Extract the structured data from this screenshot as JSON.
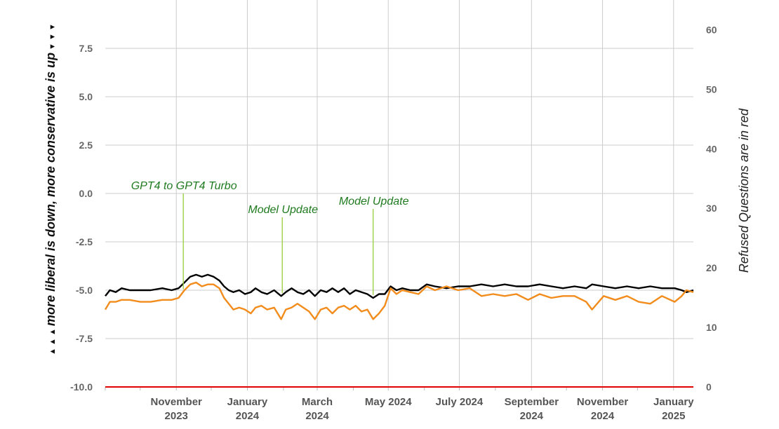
{
  "chart_data": {
    "type": "line",
    "x_axis": {
      "ticks": [
        {
          "line1": "November",
          "line2": "2023",
          "date": "2023-11-01"
        },
        {
          "line1": "January",
          "line2": "2024",
          "date": "2024-01-01"
        },
        {
          "line1": "March",
          "line2": "2024",
          "date": "2024-03-01"
        },
        {
          "line1": "May 2024",
          "line2": "",
          "date": "2024-05-01"
        },
        {
          "line1": "July 2024",
          "line2": "",
          "date": "2024-07-01"
        },
        {
          "line1": "September",
          "line2": "2024",
          "date": "2024-09-01"
        },
        {
          "line1": "November",
          "line2": "2024",
          "date": "2024-11-01"
        },
        {
          "line1": "January",
          "line2": "2025",
          "date": "2025-01-01"
        }
      ],
      "range": [
        "2023-09-01",
        "2025-01-18"
      ],
      "grid": true
    },
    "y_left": {
      "label_prefix": "▲ ▲ ▲ ",
      "label": "more liberal is down, more conservative is up",
      "label_suffix": " ▼ ▼ ▼",
      "range": [
        -10.0,
        10.0
      ],
      "ticks": [
        "7.5",
        "5.0",
        "2.5",
        "0.0",
        "-2.5",
        "-5.0",
        "-7.5",
        "-10.0"
      ],
      "tick_values": [
        7.5,
        5.0,
        2.5,
        0.0,
        -2.5,
        -5.0,
        -7.5,
        -10.0
      ]
    },
    "y_right": {
      "label": "Refused Questions are in red",
      "range": [
        0,
        65
      ],
      "ticks": [
        "60",
        "50",
        "40",
        "30",
        "20",
        "10",
        "0"
      ],
      "tick_values": [
        60,
        50,
        40,
        30,
        20,
        10,
        0
      ]
    },
    "series": [
      {
        "color": "#000000",
        "axis": "left",
        "points": [
          [
            "2023-09-01",
            -5.3
          ],
          [
            "2023-09-05",
            -5.0
          ],
          [
            "2023-09-10",
            -5.1
          ],
          [
            "2023-09-15",
            -4.9
          ],
          [
            "2023-09-22",
            -5.0
          ],
          [
            "2023-10-01",
            -5.0
          ],
          [
            "2023-10-10",
            -5.0
          ],
          [
            "2023-10-20",
            -4.9
          ],
          [
            "2023-10-28",
            -5.0
          ],
          [
            "2023-11-03",
            -4.9
          ],
          [
            "2023-11-08",
            -4.6
          ],
          [
            "2023-11-13",
            -4.3
          ],
          [
            "2023-11-18",
            -4.2
          ],
          [
            "2023-11-23",
            -4.3
          ],
          [
            "2023-11-28",
            -4.2
          ],
          [
            "2023-12-03",
            -4.3
          ],
          [
            "2023-12-08",
            -4.5
          ],
          [
            "2023-12-12",
            -4.8
          ],
          [
            "2023-12-16",
            -5.0
          ],
          [
            "2023-12-20",
            -5.1
          ],
          [
            "2023-12-25",
            -5.0
          ],
          [
            "2023-12-30",
            -5.2
          ],
          [
            "2024-01-04",
            -5.1
          ],
          [
            "2024-01-08",
            -4.9
          ],
          [
            "2024-01-13",
            -5.1
          ],
          [
            "2024-01-18",
            -5.2
          ],
          [
            "2024-01-24",
            -5.0
          ],
          [
            "2024-01-30",
            -5.3
          ],
          [
            "2024-02-03",
            -5.1
          ],
          [
            "2024-02-08",
            -4.9
          ],
          [
            "2024-02-13",
            -5.1
          ],
          [
            "2024-02-18",
            -5.2
          ],
          [
            "2024-02-23",
            -5.0
          ],
          [
            "2024-02-28",
            -5.3
          ],
          [
            "2024-03-04",
            -5.0
          ],
          [
            "2024-03-09",
            -5.1
          ],
          [
            "2024-03-14",
            -4.9
          ],
          [
            "2024-03-19",
            -5.1
          ],
          [
            "2024-03-24",
            -4.9
          ],
          [
            "2024-03-29",
            -5.2
          ],
          [
            "2024-04-03",
            -5.0
          ],
          [
            "2024-04-08",
            -5.1
          ],
          [
            "2024-04-13",
            -5.2
          ],
          [
            "2024-04-18",
            -5.4
          ],
          [
            "2024-04-23",
            -5.2
          ],
          [
            "2024-04-28",
            -5.2
          ],
          [
            "2024-05-03",
            -4.8
          ],
          [
            "2024-05-08",
            -5.0
          ],
          [
            "2024-05-13",
            -4.9
          ],
          [
            "2024-05-20",
            -5.0
          ],
          [
            "2024-05-27",
            -5.0
          ],
          [
            "2024-06-03",
            -4.7
          ],
          [
            "2024-06-10",
            -4.8
          ],
          [
            "2024-06-20",
            -4.9
          ],
          [
            "2024-06-30",
            -4.8
          ],
          [
            "2024-07-10",
            -4.8
          ],
          [
            "2024-07-20",
            -4.7
          ],
          [
            "2024-07-30",
            -4.8
          ],
          [
            "2024-08-09",
            -4.7
          ],
          [
            "2024-08-19",
            -4.8
          ],
          [
            "2024-08-29",
            -4.8
          ],
          [
            "2024-09-08",
            -4.7
          ],
          [
            "2024-09-18",
            -4.8
          ],
          [
            "2024-09-28",
            -4.9
          ],
          [
            "2024-10-08",
            -4.8
          ],
          [
            "2024-10-18",
            -4.9
          ],
          [
            "2024-10-23",
            -4.7
          ],
          [
            "2024-11-02",
            -4.8
          ],
          [
            "2024-11-12",
            -4.9
          ],
          [
            "2024-11-22",
            -4.8
          ],
          [
            "2024-12-02",
            -4.9
          ],
          [
            "2024-12-12",
            -4.8
          ],
          [
            "2024-12-22",
            -4.9
          ],
          [
            "2025-01-02",
            -4.9
          ],
          [
            "2025-01-08",
            -5.0
          ],
          [
            "2025-01-12",
            -5.1
          ],
          [
            "2025-01-18",
            -5.0
          ]
        ]
      },
      {
        "color": "#f28c1c",
        "axis": "left",
        "points": [
          [
            "2023-09-01",
            -6.0
          ],
          [
            "2023-09-05",
            -5.6
          ],
          [
            "2023-09-10",
            -5.6
          ],
          [
            "2023-09-15",
            -5.5
          ],
          [
            "2023-09-22",
            -5.5
          ],
          [
            "2023-10-01",
            -5.6
          ],
          [
            "2023-10-10",
            -5.6
          ],
          [
            "2023-10-20",
            -5.5
          ],
          [
            "2023-10-28",
            -5.5
          ],
          [
            "2023-11-03",
            -5.4
          ],
          [
            "2023-11-08",
            -5.0
          ],
          [
            "2023-11-13",
            -4.7
          ],
          [
            "2023-11-18",
            -4.6
          ],
          [
            "2023-11-23",
            -4.8
          ],
          [
            "2023-11-28",
            -4.7
          ],
          [
            "2023-12-03",
            -4.7
          ],
          [
            "2023-12-08",
            -4.9
          ],
          [
            "2023-12-12",
            -5.4
          ],
          [
            "2023-12-16",
            -5.7
          ],
          [
            "2023-12-20",
            -6.0
          ],
          [
            "2023-12-25",
            -5.9
          ],
          [
            "2023-12-30",
            -6.0
          ],
          [
            "2024-01-04",
            -6.2
          ],
          [
            "2024-01-08",
            -5.9
          ],
          [
            "2024-01-13",
            -5.8
          ],
          [
            "2024-01-18",
            -6.0
          ],
          [
            "2024-01-24",
            -5.9
          ],
          [
            "2024-01-30",
            -6.5
          ],
          [
            "2024-02-03",
            -6.0
          ],
          [
            "2024-02-08",
            -5.9
          ],
          [
            "2024-02-13",
            -5.7
          ],
          [
            "2024-02-18",
            -5.9
          ],
          [
            "2024-02-23",
            -6.1
          ],
          [
            "2024-02-28",
            -6.5
          ],
          [
            "2024-03-04",
            -6.0
          ],
          [
            "2024-03-09",
            -5.9
          ],
          [
            "2024-03-14",
            -6.2
          ],
          [
            "2024-03-19",
            -5.9
          ],
          [
            "2024-03-24",
            -5.8
          ],
          [
            "2024-03-29",
            -6.0
          ],
          [
            "2024-04-03",
            -5.8
          ],
          [
            "2024-04-08",
            -6.1
          ],
          [
            "2024-04-13",
            -6.0
          ],
          [
            "2024-04-18",
            -6.5
          ],
          [
            "2024-04-23",
            -6.2
          ],
          [
            "2024-04-28",
            -5.8
          ],
          [
            "2024-05-03",
            -4.9
          ],
          [
            "2024-05-08",
            -5.2
          ],
          [
            "2024-05-13",
            -5.0
          ],
          [
            "2024-05-20",
            -5.1
          ],
          [
            "2024-05-27",
            -5.2
          ],
          [
            "2024-06-03",
            -4.8
          ],
          [
            "2024-06-10",
            -5.0
          ],
          [
            "2024-06-20",
            -4.8
          ],
          [
            "2024-06-30",
            -5.0
          ],
          [
            "2024-07-10",
            -4.9
          ],
          [
            "2024-07-20",
            -5.3
          ],
          [
            "2024-07-30",
            -5.2
          ],
          [
            "2024-08-09",
            -5.3
          ],
          [
            "2024-08-19",
            -5.2
          ],
          [
            "2024-08-29",
            -5.5
          ],
          [
            "2024-09-08",
            -5.2
          ],
          [
            "2024-09-18",
            -5.4
          ],
          [
            "2024-09-28",
            -5.3
          ],
          [
            "2024-10-08",
            -5.3
          ],
          [
            "2024-10-18",
            -5.6
          ],
          [
            "2024-10-23",
            -6.0
          ],
          [
            "2024-11-02",
            -5.3
          ],
          [
            "2024-11-12",
            -5.5
          ],
          [
            "2024-11-22",
            -5.3
          ],
          [
            "2024-12-02",
            -5.6
          ],
          [
            "2024-12-12",
            -5.7
          ],
          [
            "2024-12-22",
            -5.3
          ],
          [
            "2025-01-02",
            -5.6
          ],
          [
            "2025-01-08",
            -5.3
          ],
          [
            "2025-01-12",
            -5.0
          ],
          [
            "2025-01-18",
            -5.1
          ]
        ]
      },
      {
        "color": "#e00000",
        "axis": "right",
        "points": [
          [
            "2023-09-01",
            0
          ],
          [
            "2025-01-18",
            0
          ]
        ]
      }
    ],
    "annotations": [
      {
        "text": "GPT4 to GPT4 Turbo",
        "date": "2023-11-07",
        "value": -4.95
      },
      {
        "text": "Model Update",
        "date": "2024-01-31",
        "value": -5.15
      },
      {
        "text": "Model Update",
        "date": "2024-04-18",
        "value": -5.25
      }
    ],
    "annotation_color": "#1f7a1f",
    "annotation_line_color": "#9fd04a"
  }
}
